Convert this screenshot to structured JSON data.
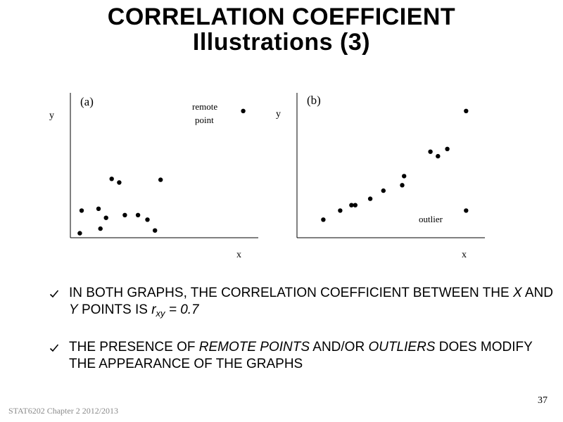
{
  "slide": {
    "title_line1": "CORRELATION COEFFICIENT",
    "title_line2": "Illustrations (3)",
    "page_number": "37",
    "footer": "STAT6202 Chapter 2 2012/2013"
  },
  "chart_data": [
    {
      "type": "scatter",
      "panel_label": "(a)",
      "xlabel": "x",
      "ylabel": "y",
      "annotation": {
        "line1": "remote",
        "line2": "point"
      },
      "points": [
        {
          "x": 0.5,
          "y": 0.5
        },
        {
          "x": 0.6,
          "y": 3.0
        },
        {
          "x": 1.6,
          "y": 1.0
        },
        {
          "x": 1.5,
          "y": 3.2
        },
        {
          "x": 1.9,
          "y": 2.2
        },
        {
          "x": 2.2,
          "y": 6.5
        },
        {
          "x": 2.6,
          "y": 6.1
        },
        {
          "x": 2.9,
          "y": 2.5
        },
        {
          "x": 3.6,
          "y": 2.5
        },
        {
          "x": 4.1,
          "y": 2.0
        },
        {
          "x": 4.5,
          "y": 0.8
        },
        {
          "x": 4.8,
          "y": 6.4
        },
        {
          "x": 9.2,
          "y": 14.0
        }
      ],
      "xlim": [
        0,
        10
      ],
      "ylim": [
        0,
        16
      ]
    },
    {
      "type": "scatter",
      "panel_label": "(b)",
      "xlabel": "x",
      "ylabel": "y",
      "annotation": {
        "line1": "outlier"
      },
      "points": [
        {
          "x": 1.4,
          "y": 2.0
        },
        {
          "x": 2.3,
          "y": 3.0
        },
        {
          "x": 2.9,
          "y": 3.6
        },
        {
          "x": 3.1,
          "y": 3.6
        },
        {
          "x": 3.9,
          "y": 4.3
        },
        {
          "x": 4.6,
          "y": 5.2
        },
        {
          "x": 5.6,
          "y": 5.8
        },
        {
          "x": 5.7,
          "y": 6.8
        },
        {
          "x": 7.1,
          "y": 9.5
        },
        {
          "x": 7.5,
          "y": 9.0
        },
        {
          "x": 8.0,
          "y": 9.8
        },
        {
          "x": 9.0,
          "y": 14.0
        },
        {
          "x": 9.0,
          "y": 3.0
        }
      ],
      "xlim": [
        0,
        10
      ],
      "ylim": [
        0,
        16
      ]
    }
  ],
  "bullets": {
    "b1": {
      "pre": "IN BOTH GRAPHS, THE CORRELATION COEFFICIENT BETWEEN THE ",
      "x": "X",
      "and": " AND ",
      "y": "Y",
      "mid": " POINTS IS ",
      "r": "r",
      "r_sub": "xy",
      "eq": " = 0.7"
    },
    "b2": {
      "pre": "THE PRESENCE OF ",
      "remote": "REMOTE POINTS",
      "mid": " AND/OR ",
      "outliers": "OUTLIERS",
      "post": " DOES MODIFY THE APPEARANCE OF THE GRAPHS"
    }
  }
}
